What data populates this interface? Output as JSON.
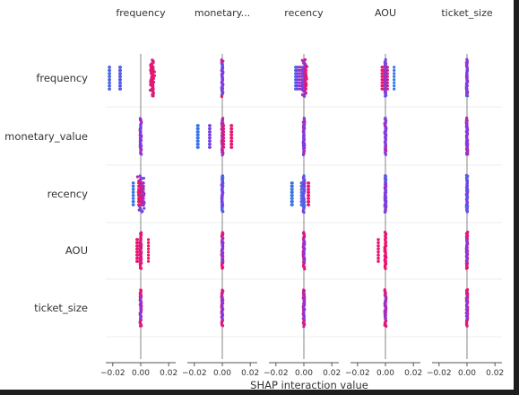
{
  "chart_data": {
    "type": "scatter",
    "features": [
      "frequency",
      "monetary_value",
      "recency",
      "AOU",
      "ticket_size"
    ],
    "column_titles": [
      "frequency",
      "monetary...",
      "recency",
      "AOU",
      "ticket_size"
    ],
    "xlabel": "SHAP interaction value",
    "xlim": [
      -0.025,
      0.025
    ],
    "x_ticks": [
      {
        "value": -0.02,
        "label": "−0.02"
      },
      {
        "value": 0.0,
        "label": "0.00"
      },
      {
        "value": 0.02,
        "label": "0.02"
      }
    ],
    "colors": {
      "low": "#1e88e5",
      "high": "#ff0d57",
      "axis": "#999999",
      "grid": "#dddddd",
      "text": "#333333"
    },
    "cells": [
      [
        {
          "points": [
            [
              -0.0225,
              0.1
            ],
            [
              -0.0222,
              0.3
            ],
            [
              -0.0225,
              0.2
            ],
            [
              -0.0148,
              0.2
            ],
            [
              -0.0145,
              0.35
            ],
            [
              -0.015,
              0.45
            ],
            [
              -0.0147,
              0.25
            ],
            [
              0.0082,
              0.95
            ],
            [
              0.0085,
              0.9
            ],
            [
              0.008,
              0.85
            ],
            [
              0.0083,
              0.9
            ],
            [
              0.0081,
              0.8
            ],
            [
              0.0084,
              0.95
            ]
          ],
          "spread": [
            0.007,
            0.01,
            0.8,
            0.9
          ]
        },
        {
          "points": [
            [
              0.0,
              0.5
            ]
          ],
          "spread": [
            0.0,
            0.0,
            0.2,
            0.9
          ]
        },
        {
          "points": [
            [
              -0.006,
              0.2
            ],
            [
              -0.0055,
              0.3
            ],
            [
              -0.0045,
              0.45
            ],
            [
              -0.003,
              0.6
            ],
            [
              -0.0015,
              0.7
            ],
            [
              0.0,
              0.8
            ],
            [
              0.001,
              0.85
            ],
            [
              0.0015,
              0.9
            ],
            [
              0.0005,
              0.55
            ],
            [
              -0.0005,
              0.4
            ],
            [
              0.0012,
              0.95
            ]
          ],
          "spread": [
            -0.001,
            0.002,
            0.4,
            0.95
          ]
        },
        {
          "points": [
            [
              -0.0025,
              0.95
            ],
            [
              -0.0018,
              0.9
            ],
            [
              0.0015,
              0.8
            ],
            [
              0.0062,
              0.1
            ]
          ],
          "spread": [
            0.0,
            0.0,
            0.3,
            0.7
          ]
        },
        {
          "points": [
            [
              0.0,
              0.5
            ]
          ],
          "spread": [
            0.0,
            0.0,
            0.2,
            0.8
          ]
        }
      ],
      [
        {
          "points": [
            [
              0.0,
              0.5
            ]
          ],
          "spread": [
            0.0,
            0.0,
            0.3,
            0.95
          ]
        },
        {
          "points": [
            [
              -0.0175,
              0.1
            ],
            [
              -0.0172,
              0.05
            ],
            [
              -0.0178,
              0.15
            ],
            [
              -0.009,
              0.4
            ],
            [
              -0.0088,
              0.5
            ],
            [
              -0.0092,
              0.45
            ],
            [
              0.0008,
              0.8
            ],
            [
              0.001,
              0.85
            ],
            [
              0.0065,
              0.95
            ],
            [
              0.0068,
              0.9
            ],
            [
              0.0063,
              0.92
            ]
          ],
          "spread": [
            0.0,
            0.0,
            0.5,
            0.9
          ]
        },
        {
          "points": [
            [
              0.0,
              0.5
            ]
          ],
          "spread": [
            0.0,
            0.0,
            0.3,
            0.9
          ]
        },
        {
          "points": [
            [
              0.0,
              0.5
            ]
          ],
          "spread": [
            0.0,
            0.0,
            0.3,
            0.9
          ]
        },
        {
          "points": [
            [
              0.0,
              0.5
            ]
          ],
          "spread": [
            0.0,
            0.0,
            0.3,
            0.9
          ]
        }
      ],
      [
        {
          "points": [
            [
              -0.0055,
              0.1
            ],
            [
              -0.0052,
              0.15
            ],
            [
              0.0,
              0.5
            ],
            [
              0.0015,
              0.9
            ],
            [
              0.001,
              0.85
            ],
            [
              0.002,
              0.6
            ],
            [
              -0.0015,
              0.75
            ],
            [
              -0.001,
              0.95
            ]
          ],
          "spread": [
            -0.002,
            0.0025,
            0.1,
            0.95
          ]
        },
        {
          "points": [
            [
              0.0,
              0.5
            ]
          ],
          "spread": [
            0.0,
            0.0,
            0.0,
            0.6
          ]
        },
        {
          "points": [
            [
              -0.0085,
              0.1
            ],
            [
              -0.0082,
              0.05
            ],
            [
              -0.0088,
              0.15
            ],
            [
              -0.0018,
              0.3
            ],
            [
              -0.0015,
              0.25
            ],
            [
              0.0032,
              0.9
            ],
            [
              0.0035,
              0.95
            ],
            [
              0.003,
              0.92
            ]
          ],
          "spread": [
            0.0,
            0.0,
            0.0,
            0.6
          ]
        },
        {
          "points": [
            [
              0.0,
              0.5
            ]
          ],
          "spread": [
            0.0,
            0.0,
            0.1,
            0.8
          ]
        },
        {
          "points": [
            [
              0.0,
              0.5
            ]
          ],
          "spread": [
            0.0,
            0.0,
            0.0,
            0.5
          ]
        }
      ],
      [
        {
          "points": [
            [
              -0.0028,
              0.95
            ],
            [
              -0.0022,
              0.9
            ],
            [
              -0.0025,
              0.92
            ],
            [
              0.0055,
              0.95
            ],
            [
              0.0,
              0.8
            ]
          ],
          "spread": [
            0.0,
            0.0,
            0.85,
            0.98
          ]
        },
        {
          "points": [
            [
              0.0,
              0.5
            ]
          ],
          "spread": [
            0.0,
            0.0,
            0.8,
            0.95
          ]
        },
        {
          "points": [
            [
              0.0,
              0.5
            ]
          ],
          "spread": [
            0.0,
            0.0,
            0.75,
            0.95
          ]
        },
        {
          "points": [
            [
              -0.0052,
              0.95
            ],
            [
              -0.005,
              0.9
            ]
          ],
          "spread": [
            0.0,
            0.0,
            0.85,
            0.99
          ]
        },
        {
          "points": [
            [
              0.0,
              0.5
            ]
          ],
          "spread": [
            0.0,
            0.0,
            0.8,
            0.95
          ]
        }
      ],
      [
        {
          "points": [
            [
              0.0,
              0.5
            ]
          ],
          "spread": [
            0.0,
            0.0,
            0.85,
            0.95
          ]
        },
        {
          "points": [
            [
              0.0,
              0.5
            ]
          ],
          "spread": [
            0.0,
            0.0,
            0.8,
            0.95
          ]
        },
        {
          "points": [
            [
              0.0,
              0.5
            ]
          ],
          "spread": [
            0.0,
            0.0,
            0.7,
            0.9
          ]
        },
        {
          "points": [
            [
              0.0,
              0.5
            ]
          ],
          "spread": [
            0.0,
            0.0,
            0.8,
            0.95
          ]
        },
        {
          "points": [
            [
              0.0,
              0.5
            ]
          ],
          "spread": [
            0.0,
            0.0,
            0.85,
            0.95
          ]
        }
      ]
    ]
  }
}
